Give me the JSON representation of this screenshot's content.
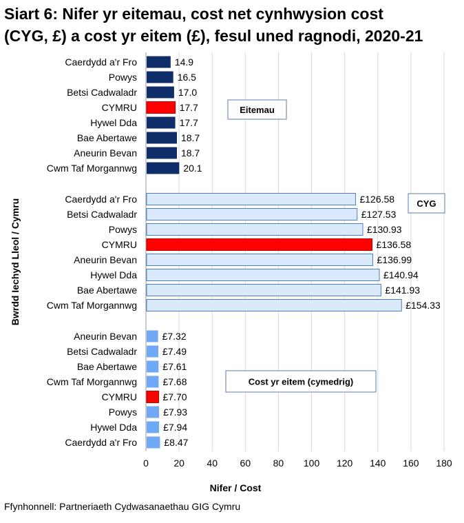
{
  "title_line1": "Siart 6: Nifer yr eitemau, cost net cynhwysion cost",
  "title_line2": "(CYG, £) a cost yr eitem (£), fesul uned ragnodi, 2020-21",
  "source": "Ffynhonnell: Partneriaeth Cydwasanaethau GIG Cymru",
  "chart_data": {
    "type": "bar",
    "orientation": "horizontal",
    "xlabel": "Nifer / Cost",
    "ylabel": "Bwrdd Iechyd Lleol / Cymru",
    "xlim": [
      0,
      180
    ],
    "xticks": [
      0,
      20,
      40,
      60,
      80,
      100,
      120,
      140,
      160,
      180
    ],
    "grid": true,
    "groups": [
      {
        "name": "Eitemau",
        "color": "#0f2d69",
        "highlight_color": "#ff0000",
        "categories": [
          "Caerdydd a'r Fro",
          "Powys",
          "Betsi Cadwaladr",
          "CYMRU",
          "Hywel Dda",
          "Bae Abertawe",
          "Aneurin Bevan",
          "Cwm Taf Morgannwg"
        ],
        "values": [
          14.9,
          16.5,
          17.0,
          17.7,
          17.7,
          18.7,
          18.7,
          20.1
        ],
        "labels": [
          "14.9",
          "16.5",
          "17.0",
          "17.7",
          "17.7",
          "18.7",
          "18.7",
          "20.1"
        ]
      },
      {
        "name": "CYG",
        "color": "#dce9fb",
        "highlight_color": "#ff0000",
        "categories": [
          "Caerdydd a'r Fro",
          "Betsi Cadwaladr",
          "Powys",
          "CYMRU",
          "Aneurin Bevan",
          "Hywel Dda",
          "Bae Abertawe",
          "Cwm Taf Morgannwg"
        ],
        "values": [
          126.58,
          127.53,
          130.93,
          136.58,
          136.99,
          140.94,
          141.93,
          154.33
        ],
        "labels": [
          "£126.58",
          "£127.53",
          "£130.93",
          "£136.58",
          "£136.99",
          "£140.94",
          "£141.93",
          "£154.33"
        ]
      },
      {
        "name": "Cost yr eitem (cymedrig)",
        "color": "#6fa8f5",
        "highlight_color": "#ff0000",
        "categories": [
          "Aneurin Bevan",
          "Betsi Cadwaladr",
          "Bae Abertawe",
          "Cwm Taf Morgannwg",
          "CYMRU",
          "Powys",
          "Hywel Dda",
          "Caerdydd a'r Fro"
        ],
        "values": [
          7.32,
          7.49,
          7.61,
          7.68,
          7.7,
          7.93,
          7.94,
          8.47
        ],
        "labels": [
          "£7.32",
          "£7.49",
          "£7.61",
          "£7.68",
          "£7.70",
          "£7.93",
          "£7.94",
          "£8.47"
        ]
      }
    ],
    "highlight_category": "CYMRU"
  }
}
